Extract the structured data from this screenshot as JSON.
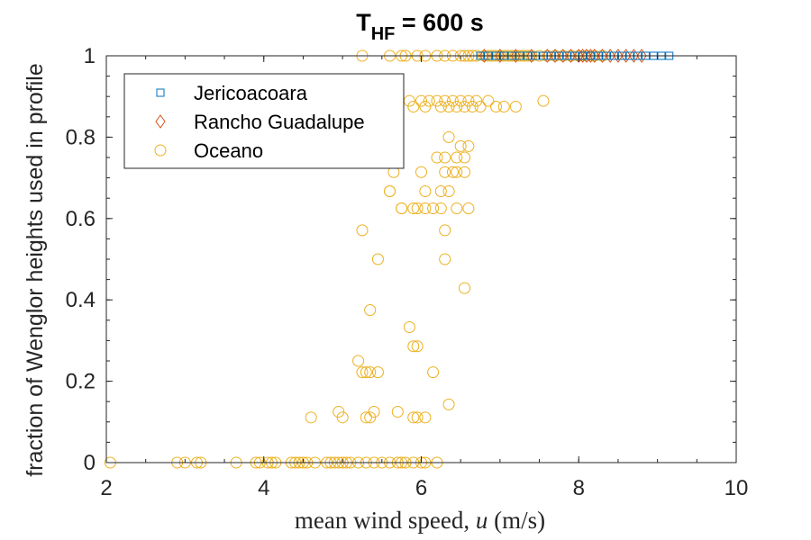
{
  "chart_data": {
    "type": "scatter",
    "title": {
      "main": "T",
      "subscript": "HF",
      "rest": " = 600 s"
    },
    "xlabel": {
      "prefix": "mean wind speed, ",
      "var": "u",
      "suffix": " (m/s)"
    },
    "ylabel": "fraction of Wenglor heights used in profile",
    "xlim": [
      2,
      10
    ],
    "ylim": [
      0,
      1
    ],
    "xticks": [
      2,
      4,
      6,
      8,
      10
    ],
    "yticks": [
      0,
      0.2,
      0.4,
      0.6,
      0.8,
      1
    ],
    "xtick_labels": [
      "2",
      "4",
      "6",
      "8",
      "10"
    ],
    "ytick_labels": [
      "0",
      "0.2",
      "0.4",
      "0.6",
      "0.8",
      "1"
    ],
    "grid": false,
    "legend_position": "top-left",
    "colors": {
      "Jericoacoara": "#0072BD",
      "Rancho Guadalupe": "#D95319",
      "Oceano": "#EDB120"
    },
    "series": [
      {
        "name": "Jericoacoara",
        "marker": "square",
        "x": [
          6.75,
          6.85,
          6.95,
          7.05,
          7.15,
          7.25,
          7.35,
          7.45,
          7.55,
          7.65,
          7.75,
          7.85,
          7.95,
          8.05,
          8.15,
          8.25,
          8.35,
          8.45,
          8.55,
          8.65,
          8.75,
          8.85,
          8.95,
          9.05,
          9.15
        ],
        "y": [
          1,
          1,
          1,
          1,
          1,
          1,
          1,
          1,
          1,
          1,
          1,
          1,
          1,
          1,
          1,
          1,
          1,
          1,
          1,
          1,
          1,
          1,
          1,
          1,
          1
        ]
      },
      {
        "name": "Rancho Guadalupe",
        "marker": "diamond",
        "x": [
          6.8,
          7.0,
          7.2,
          7.4,
          7.6,
          7.7,
          7.8,
          7.9,
          8.0,
          8.05,
          8.1,
          8.15,
          8.2,
          8.3,
          8.4,
          8.5,
          8.6,
          8.7,
          8.8
        ],
        "y": [
          1,
          1,
          1,
          1,
          1,
          1,
          1,
          1,
          1,
          1,
          1,
          1,
          1,
          1,
          1,
          1,
          1,
          1,
          1
        ]
      },
      {
        "name": "Oceano",
        "marker": "circle",
        "x": [
          5.25,
          5.6,
          5.75,
          5.8,
          5.95,
          6.05,
          6.2,
          6.3,
          6.4,
          6.5,
          6.55,
          6.6,
          6.65,
          6.7,
          6.8,
          6.85,
          6.9,
          6.95,
          7.0,
          7.05,
          7.1,
          7.15,
          7.2,
          7.25,
          7.3,
          7.35,
          7.4,
          7.5,
          7.6,
          7.7,
          7.8,
          7.9,
          8.0,
          8.1,
          8.2,
          8.3,
          5.6,
          5.85,
          5.9,
          6.0,
          6.05,
          6.1,
          6.2,
          6.25,
          6.3,
          6.35,
          6.4,
          6.45,
          6.5,
          6.55,
          6.6,
          6.65,
          6.7,
          6.75,
          6.85,
          6.95,
          7.05,
          7.2,
          7.55,
          5.7,
          6.2,
          6.3,
          6.35,
          6.4,
          6.45,
          6.5,
          6.55,
          6.6,
          5.65,
          6.0,
          6.3,
          6.45,
          6.55,
          5.6,
          5.75,
          5.95,
          6.05,
          6.15,
          6.25,
          6.35,
          6.45,
          6.6,
          5.6,
          5.75,
          5.9,
          6.05,
          6.25,
          5.25,
          6.3,
          5.45,
          6.3,
          6.55,
          5.35,
          5.85,
          5.9,
          5.95,
          5.2,
          5.25,
          5.3,
          5.35,
          5.45,
          6.15,
          4.95,
          5.3,
          5.35,
          5.4,
          5.7,
          5.9,
          5.95,
          6.05,
          6.35,
          4.6,
          5.0,
          2.05,
          2.9,
          3.0,
          3.15,
          3.2,
          3.65,
          3.9,
          3.95,
          4.05,
          4.1,
          4.15,
          4.35,
          4.4,
          4.45,
          4.5,
          4.55,
          4.65,
          4.8,
          4.85,
          4.9,
          4.95,
          5.0,
          5.05,
          5.1,
          5.2,
          5.3,
          5.4,
          5.5,
          5.6,
          5.7,
          5.75,
          5.8,
          5.9,
          6.0,
          6.05,
          6.2
        ],
        "y": [
          1,
          1,
          1,
          1,
          1,
          1,
          1,
          1,
          1,
          1,
          1,
          1,
          1,
          1,
          1,
          1,
          1,
          1,
          1,
          1,
          1,
          1,
          1,
          1,
          1,
          1,
          1,
          1,
          1,
          1,
          1,
          1,
          1,
          1,
          1,
          1,
          0.889,
          0.889,
          0.875,
          0.889,
          0.875,
          0.889,
          0.889,
          0.875,
          0.889,
          0.875,
          0.889,
          0.875,
          0.889,
          0.875,
          0.889,
          0.875,
          0.889,
          0.875,
          0.889,
          0.875,
          0.875,
          0.875,
          0.889,
          0.857,
          0.75,
          0.75,
          0.8,
          0.714,
          0.75,
          0.778,
          0.75,
          0.778,
          0.714,
          0.714,
          0.714,
          0.714,
          0.714,
          0.667,
          0.625,
          0.625,
          0.667,
          0.625,
          0.625,
          0.667,
          0.625,
          0.625,
          0.667,
          0.625,
          0.625,
          0.625,
          0.667,
          0.571,
          0.571,
          0.5,
          0.5,
          0.429,
          0.375,
          0.333,
          0.286,
          0.286,
          0.25,
          0.222,
          0.222,
          0.222,
          0.222,
          0.222,
          0.125,
          0.111,
          0.111,
          0.125,
          0.125,
          0.111,
          0.111,
          0.111,
          0.143,
          0.111,
          0.111,
          0,
          0,
          0,
          0,
          0,
          0,
          0,
          0,
          0,
          0,
          0,
          0,
          0,
          0,
          0,
          0,
          0,
          0,
          0,
          0,
          0,
          0,
          0,
          0,
          0,
          0,
          0,
          0,
          0,
          0,
          0,
          0,
          0,
          0,
          0,
          0
        ]
      }
    ]
  }
}
